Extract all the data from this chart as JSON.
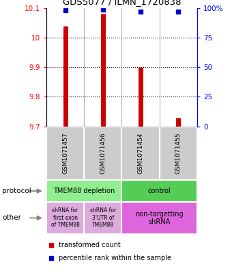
{
  "title": "GDS5077 / ILMN_1720838",
  "samples": [
    "GSM1071457",
    "GSM1071456",
    "GSM1071454",
    "GSM1071455"
  ],
  "red_values": [
    10.04,
    10.08,
    9.9,
    9.73
  ],
  "blue_values": [
    98,
    99,
    97,
    97
  ],
  "ylim_left": [
    9.7,
    10.1
  ],
  "ylim_right": [
    0,
    100
  ],
  "yticks_left": [
    9.7,
    9.8,
    9.9,
    10.0,
    10.1
  ],
  "ytick_labels_left": [
    "9.7",
    "9.8",
    "9.9",
    "10",
    "10.1"
  ],
  "yticks_right": [
    0,
    25,
    50,
    75,
    100
  ],
  "ytick_labels_right": [
    "0",
    "25",
    "50",
    "75",
    "100%"
  ],
  "red_color": "#cc0000",
  "blue_color": "#0000cc",
  "protocol_labels": [
    "TMEM88 depletion",
    "control"
  ],
  "protocol_colors": [
    "#90ee90",
    "#55cc55"
  ],
  "other_color_left": "#ddaadd",
  "other_color_right": "#dd66dd",
  "legend_red": "transformed count",
  "legend_blue": "percentile rank within the sample",
  "protocol_row_label": "protocol",
  "other_row_label": "other",
  "bg_color": "#ffffff",
  "label_box_color": "#cccccc",
  "grid_color": "#000000"
}
